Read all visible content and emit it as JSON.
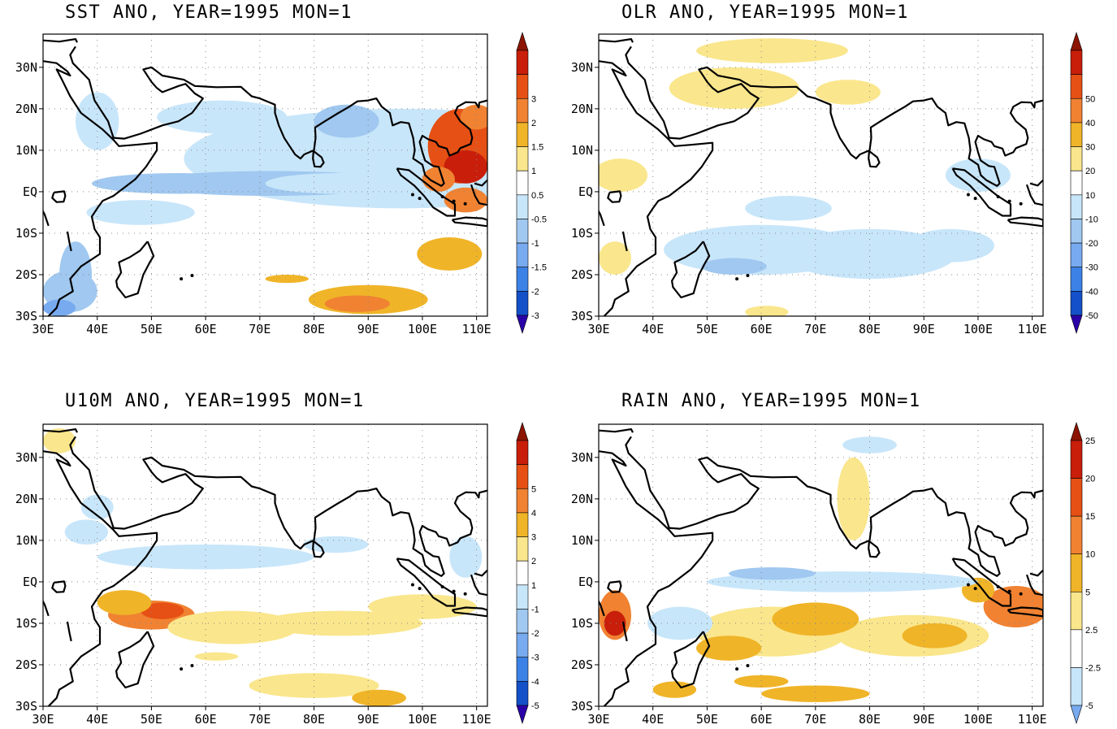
{
  "chart_data": [
    {
      "type": "heatmap",
      "title": "SST ANO, YEAR=1995 MON=1",
      "variable": "SST anomaly",
      "xlabel": "",
      "ylabel": "",
      "xlim": [
        30,
        112
      ],
      "ylim": [
        -30,
        38
      ],
      "x_ticks": [
        "30E",
        "40E",
        "50E",
        "60E",
        "70E",
        "80E",
        "90E",
        "100E",
        "110E"
      ],
      "y_ticks": [
        "30N",
        "20N",
        "10N",
        "EQ",
        "10S",
        "20S",
        "30S"
      ],
      "grid": "dotted",
      "colorbar": {
        "levels": [
          "-3",
          "-2",
          "-1.5",
          "-1",
          "-0.5",
          "0.5",
          "1",
          "1.5",
          "2",
          "3"
        ],
        "colors": [
          "#2a00a8",
          "#1450c8",
          "#3c82e6",
          "#78aaf0",
          "#a0c8f0",
          "#c8e6fa",
          "#ffffff",
          "#fae68c",
          "#f0b428",
          "#f08232",
          "#e65014",
          "#c81e0a",
          "#8c1400"
        ]
      },
      "features": [
        {
          "region": "Bay of Bengal to Malay Peninsula / South China Sea",
          "lon": [
            103,
            112
          ],
          "lat": [
            3,
            22
          ],
          "anomaly": "2 to 3"
        },
        {
          "region": "Southern Indian Ocean band",
          "lon": [
            78,
            100
          ],
          "lat": [
            -30,
            -24
          ],
          "anomaly": "1 to 2"
        },
        {
          "region": "Off Western Australia / Sumatra",
          "lon": [
            98,
            112
          ],
          "lat": [
            -20,
            -10
          ],
          "anomaly": "0.5 to 1.5"
        },
        {
          "region": "Equatorial Indian Ocean",
          "lon": [
            42,
            98
          ],
          "lat": [
            -2,
            4
          ],
          "anomaly": "-0.5 to -1"
        },
        {
          "region": "Arabian Sea / Bay of Bengal",
          "lon": [
            50,
            90
          ],
          "lat": [
            12,
            25
          ],
          "anomaly": "-0.5"
        },
        {
          "region": "Mozambique Channel / SE Africa coast",
          "lon": [
            30,
            40
          ],
          "lat": [
            -30,
            -15
          ],
          "anomaly": "-1 to -1.5"
        }
      ]
    },
    {
      "type": "heatmap",
      "title": "OLR ANO, YEAR=1995 MON=1",
      "variable": "OLR anomaly",
      "xlabel": "",
      "ylabel": "",
      "xlim": [
        30,
        112
      ],
      "ylim": [
        -30,
        38
      ],
      "x_ticks": [
        "30E",
        "40E",
        "50E",
        "60E",
        "70E",
        "80E",
        "90E",
        "100E",
        "110E"
      ],
      "y_ticks": [
        "30N",
        "20N",
        "10N",
        "EQ",
        "10S",
        "20S",
        "30S"
      ],
      "grid": "dotted",
      "colorbar": {
        "levels": [
          "-50",
          "-40",
          "-30",
          "-20",
          "-10",
          "10",
          "20",
          "30",
          "40",
          "50"
        ],
        "colors": [
          "#2a00a8",
          "#1450c8",
          "#3c82e6",
          "#78aaf0",
          "#a0c8f0",
          "#c8e6fa",
          "#ffffff",
          "#fae68c",
          "#f0b428",
          "#f08232",
          "#e65014",
          "#c81e0a",
          "#8c1400"
        ]
      },
      "features": [
        {
          "region": "Arabian Peninsula / Iran",
          "lon": [
            38,
            75
          ],
          "lat": [
            20,
            38
          ],
          "anomaly": "10 to 20"
        },
        {
          "region": "East Africa equatorial",
          "lon": [
            30,
            40
          ],
          "lat": [
            -12,
            8
          ],
          "anomaly": "10 to 20"
        },
        {
          "region": "Southern tropical Indian Ocean",
          "lon": [
            40,
            105
          ],
          "lat": [
            -25,
            -5
          ],
          "anomaly": "-10 to -30"
        },
        {
          "region": "Maritime continent",
          "lon": [
            95,
            110
          ],
          "lat": [
            -5,
            10
          ],
          "anomaly": "-10"
        }
      ]
    },
    {
      "type": "heatmap",
      "title": "U10M ANO, YEAR=1995 MON=1",
      "variable": "10 m zonal wind anomaly",
      "xlabel": "",
      "ylabel": "",
      "xlim": [
        30,
        112
      ],
      "ylim": [
        -30,
        38
      ],
      "x_ticks": [
        "30E",
        "40E",
        "50E",
        "60E",
        "70E",
        "80E",
        "90E",
        "100E",
        "110E"
      ],
      "y_ticks": [
        "30N",
        "20N",
        "10N",
        "EQ",
        "10S",
        "20S",
        "30S"
      ],
      "grid": "dotted",
      "colorbar": {
        "levels": [
          "-5",
          "-4",
          "-3",
          "-2",
          "-1",
          "1",
          "2",
          "3",
          "4",
          "5"
        ],
        "colors": [
          "#2a00a8",
          "#1450c8",
          "#3c82e6",
          "#78aaf0",
          "#a0c8f0",
          "#c8e6fa",
          "#ffffff",
          "#fae68c",
          "#f0b428",
          "#f08232",
          "#e65014",
          "#c81e0a",
          "#8c1400"
        ]
      },
      "features": [
        {
          "region": "Southwest tropical Indian Ocean",
          "lon": [
            45,
            62
          ],
          "lat": [
            -14,
            -5
          ],
          "anomaly": "3 to 4"
        },
        {
          "region": "South Indian Ocean westerly band",
          "lon": [
            40,
            100
          ],
          "lat": [
            -16,
            -5
          ],
          "anomaly": "1 to 2"
        },
        {
          "region": "Southern band near 25S",
          "lon": [
            70,
            98
          ],
          "lat": [
            -30,
            -22
          ],
          "anomaly": "1 to 2"
        },
        {
          "region": "Northern equatorial Indian Ocean",
          "lon": [
            45,
            85
          ],
          "lat": [
            2,
            10
          ],
          "anomaly": "-1"
        }
      ]
    },
    {
      "type": "heatmap",
      "title": "RAIN ANO, YEAR=1995 MON=1",
      "variable": "Rainfall anomaly",
      "xlabel": "",
      "ylabel": "",
      "xlim": [
        30,
        112
      ],
      "ylim": [
        -30,
        38
      ],
      "x_ticks": [
        "30E",
        "40E",
        "50E",
        "60E",
        "70E",
        "80E",
        "90E",
        "100E",
        "110E"
      ],
      "y_ticks": [
        "30N",
        "20N",
        "10N",
        "EQ",
        "10S",
        "20S",
        "30S"
      ],
      "grid": "dotted",
      "colorbar": {
        "levels": [
          "-5",
          "-2.5",
          "2.5",
          "5",
          "10",
          "15",
          "20",
          "25"
        ],
        "colors": [
          "#78aaf0",
          "#c8e6fa",
          "#ffffff",
          "#fae68c",
          "#f0b428",
          "#f08232",
          "#e65014",
          "#c81e0a",
          "#8c1400"
        ]
      },
      "features": [
        {
          "region": "Southern tropical Indian Ocean convective band",
          "lon": [
            40,
            100
          ],
          "lat": [
            -20,
            -2
          ],
          "anomaly": "2.5 to 15"
        },
        {
          "region": "East African coast near equator",
          "lon": [
            30,
            36
          ],
          "lat": [
            -15,
            -2
          ],
          "anomaly": "10 to 20"
        },
        {
          "region": "Sumatra / Java",
          "lon": [
            100,
            112
          ],
          "lat": [
            -12,
            2
          ],
          "anomaly": "5 to 15"
        },
        {
          "region": "Equatorial Indian Ocean north of band",
          "lon": [
            50,
            100
          ],
          "lat": [
            -2,
            4
          ],
          "anomaly": "-2.5 to -5"
        },
        {
          "region": "Southern band near 25S",
          "lon": [
            58,
            82
          ],
          "lat": [
            -28,
            -22
          ],
          "anomaly": "5 to 10"
        }
      ]
    }
  ]
}
